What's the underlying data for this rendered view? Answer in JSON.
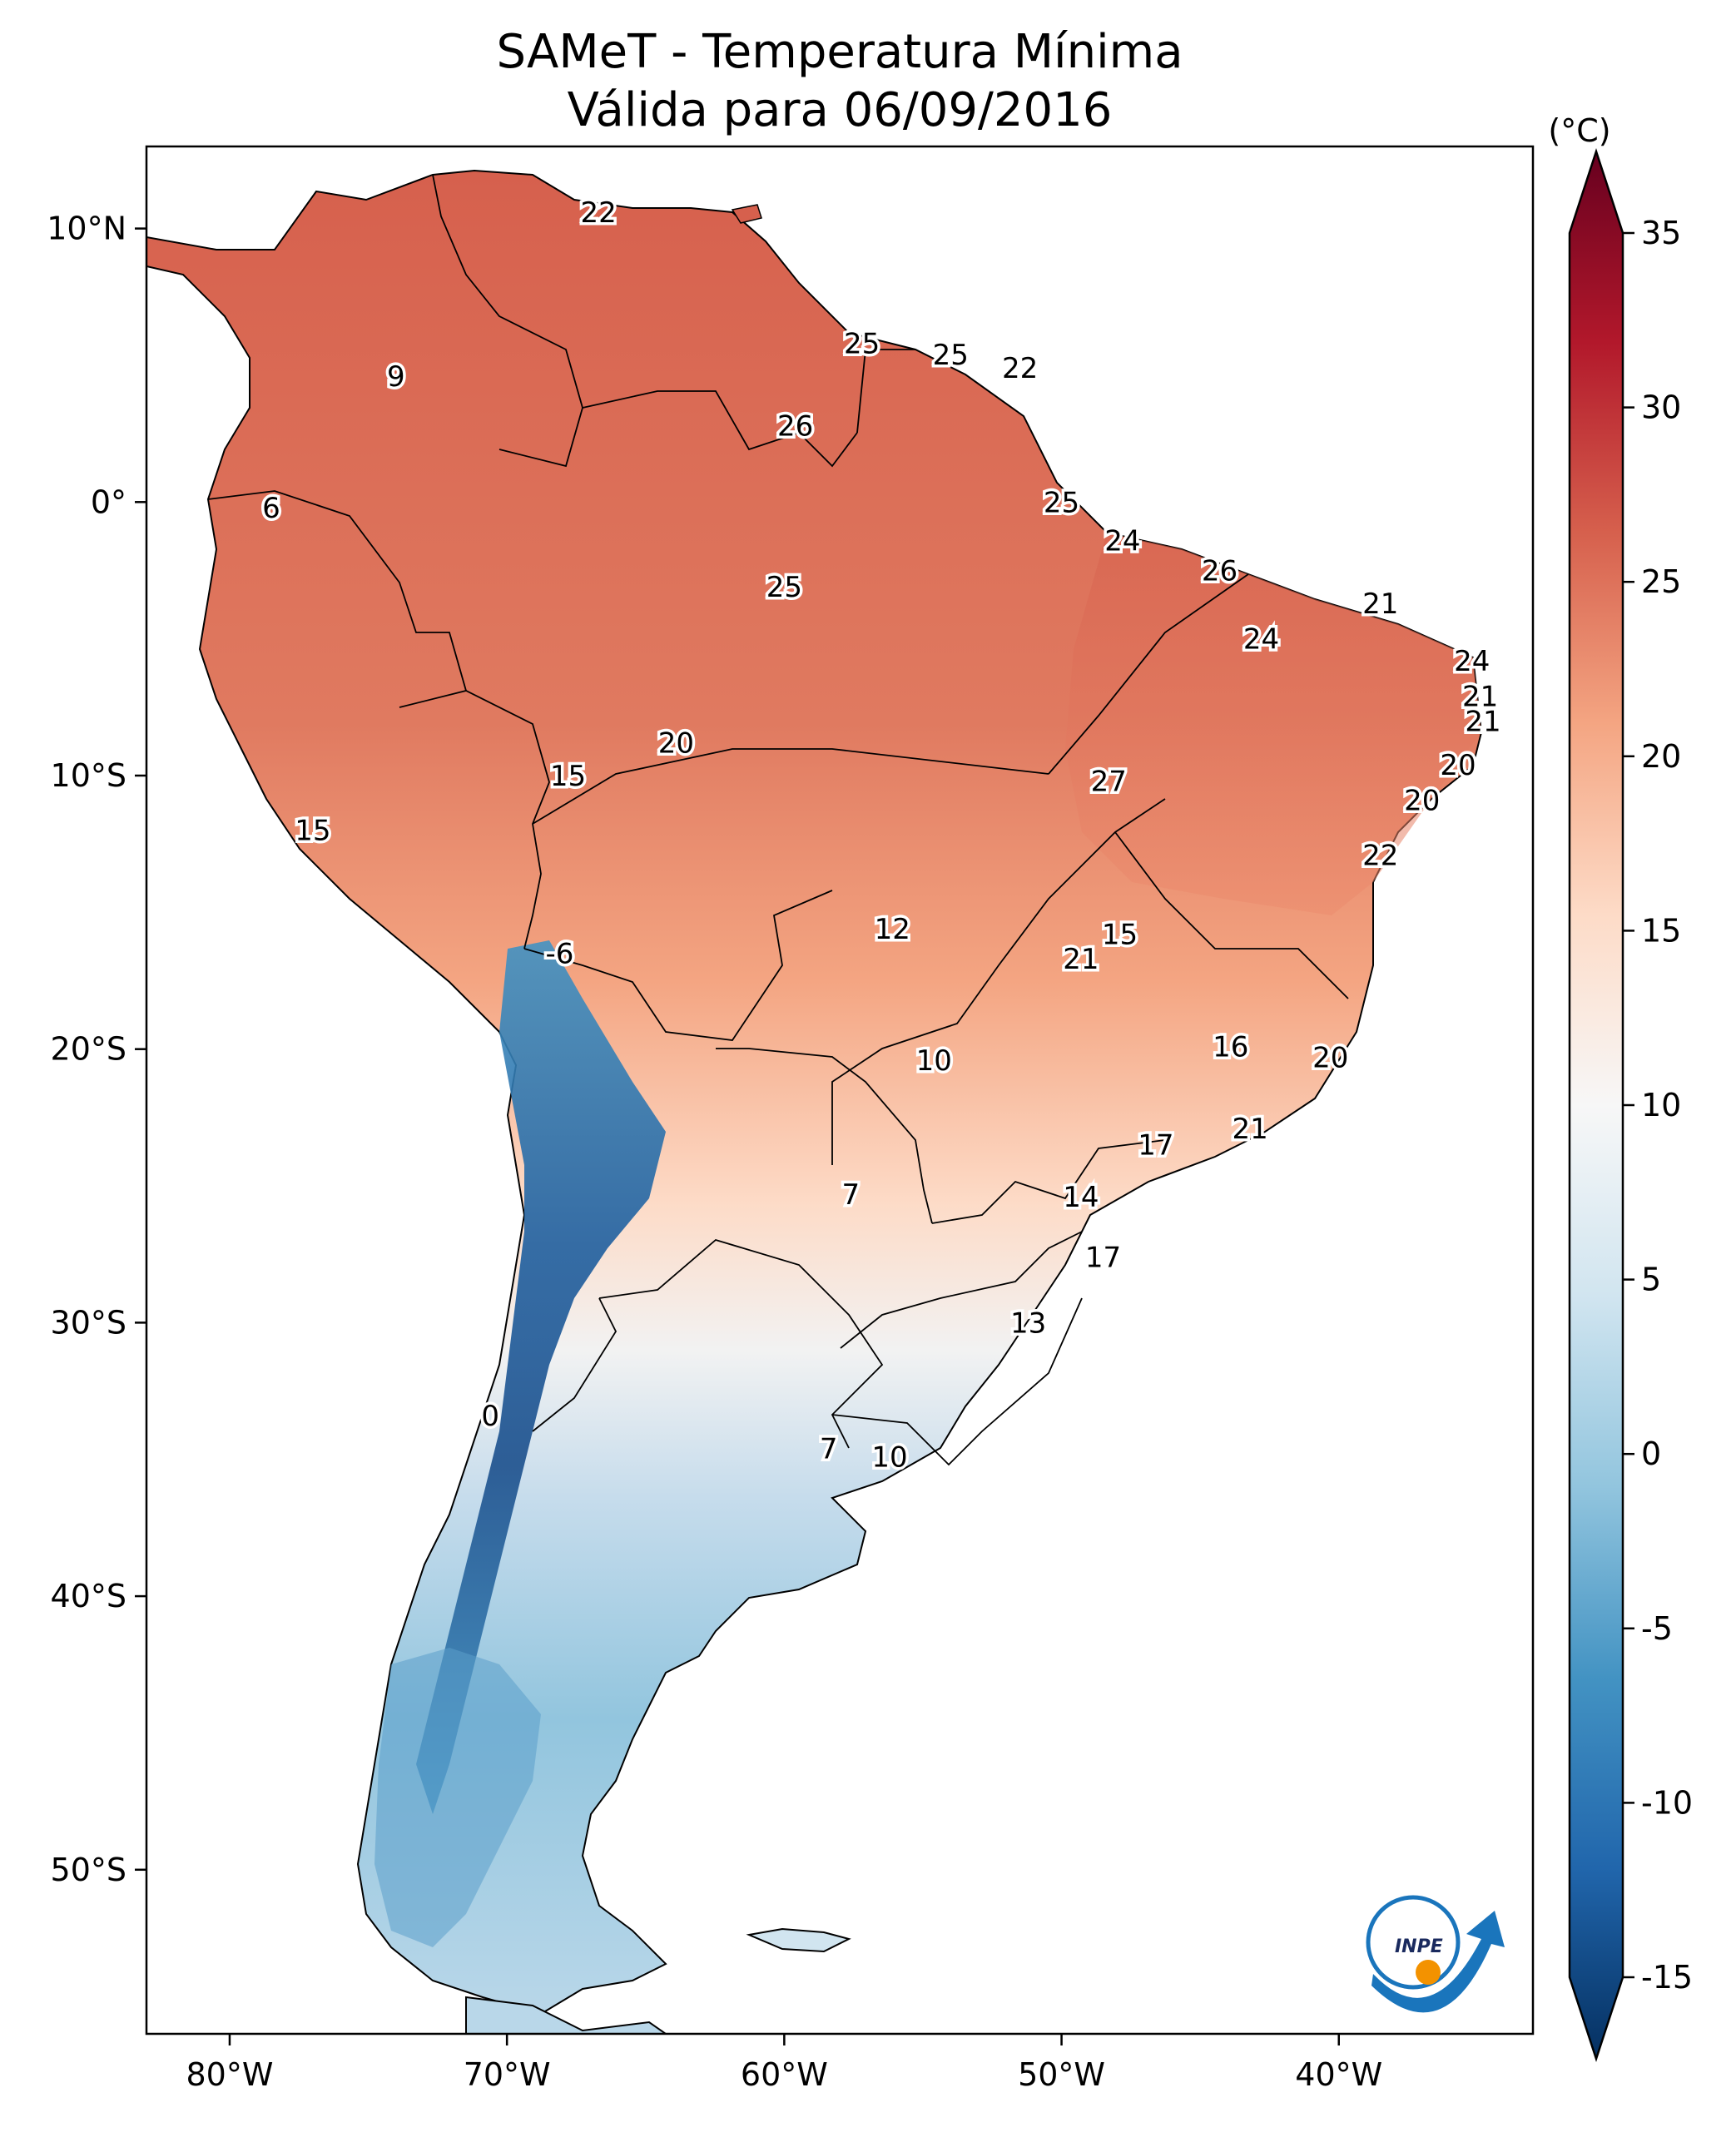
{
  "title": {
    "line1": "SAMeT - Temperatura Mínima",
    "line2": "Válida para 06/09/2016"
  },
  "map": {
    "lon_range": [
      -83,
      -33
    ],
    "lat_range": [
      -56,
      13
    ],
    "lon_ticks": [
      {
        "value": -80,
        "label": "80°W"
      },
      {
        "value": -70,
        "label": "70°W"
      },
      {
        "value": -60,
        "label": "60°W"
      },
      {
        "value": -50,
        "label": "50°W"
      },
      {
        "value": -40,
        "label": "40°W"
      }
    ],
    "lat_ticks": [
      {
        "value": 10,
        "label": "10°N"
      },
      {
        "value": 0,
        "label": "0°"
      },
      {
        "value": -10,
        "label": "10°S"
      },
      {
        "value": -20,
        "label": "20°S"
      },
      {
        "value": -30,
        "label": "30°S"
      },
      {
        "value": -40,
        "label": "40°S"
      },
      {
        "value": -50,
        "label": "50°S"
      }
    ],
    "stations": [
      {
        "label": "22",
        "lon": -66.7,
        "lat": 10.6
      },
      {
        "label": "9",
        "lon": -74.0,
        "lat": 4.6
      },
      {
        "label": "6",
        "lon": -78.5,
        "lat": -0.2
      },
      {
        "label": "25",
        "lon": -57.2,
        "lat": 5.8
      },
      {
        "label": "25",
        "lon": -54.0,
        "lat": 5.4
      },
      {
        "label": "22",
        "lon": -51.5,
        "lat": 4.9
      },
      {
        "label": "26",
        "lon": -59.6,
        "lat": 2.8
      },
      {
        "label": "25",
        "lon": -50.0,
        "lat": 0.0
      },
      {
        "label": "24",
        "lon": -47.8,
        "lat": -1.4
      },
      {
        "label": "26",
        "lon": -44.3,
        "lat": -2.5
      },
      {
        "label": "25",
        "lon": -60.0,
        "lat": -3.1
      },
      {
        "label": "21",
        "lon": -38.5,
        "lat": -3.7
      },
      {
        "label": "24",
        "lon": -42.8,
        "lat": -5.0
      },
      {
        "label": "24",
        "lon": -35.2,
        "lat": -5.8
      },
      {
        "label": "21",
        "lon": -34.9,
        "lat": -7.1
      },
      {
        "label": "21",
        "lon": -34.8,
        "lat": -8.0
      },
      {
        "label": "20",
        "lon": -63.9,
        "lat": -8.8
      },
      {
        "label": "15",
        "lon": -67.8,
        "lat": -10.0
      },
      {
        "label": "27",
        "lon": -48.3,
        "lat": -10.2
      },
      {
        "label": "20",
        "lon": -35.7,
        "lat": -9.6
      },
      {
        "label": "20",
        "lon": -37.0,
        "lat": -10.9
      },
      {
        "label": "15",
        "lon": -77.0,
        "lat": -12.0
      },
      {
        "label": "22",
        "lon": -38.5,
        "lat": -12.9
      },
      {
        "label": "12",
        "lon": -56.1,
        "lat": -15.6
      },
      {
        "label": "15",
        "lon": -47.9,
        "lat": -15.8
      },
      {
        "label": "21",
        "lon": -49.3,
        "lat": -16.7
      },
      {
        "label": "-6",
        "lon": -68.1,
        "lat": -16.5
      },
      {
        "label": "16",
        "lon": -43.9,
        "lat": -19.9
      },
      {
        "label": "10",
        "lon": -54.6,
        "lat": -20.4
      },
      {
        "label": "20",
        "lon": -40.3,
        "lat": -20.3
      },
      {
        "label": "21",
        "lon": -43.2,
        "lat": -22.9
      },
      {
        "label": "17",
        "lon": -46.6,
        "lat": -23.5
      },
      {
        "label": "7",
        "lon": -57.6,
        "lat": -25.3
      },
      {
        "label": "14",
        "lon": -49.3,
        "lat": -25.4
      },
      {
        "label": "17",
        "lon": -48.5,
        "lat": -27.6
      },
      {
        "label": "13",
        "lon": -51.2,
        "lat": -30.0
      },
      {
        "label": "0",
        "lon": -70.6,
        "lat": -33.4
      },
      {
        "label": "7",
        "lon": -58.4,
        "lat": -34.6
      },
      {
        "label": "10",
        "lon": -56.2,
        "lat": -34.9
      }
    ]
  },
  "colorbar": {
    "unit": "(°C)",
    "min": -15,
    "max": 35,
    "ticks": [
      {
        "value": 35,
        "label": "35"
      },
      {
        "value": 30,
        "label": "30"
      },
      {
        "value": 25,
        "label": "25"
      },
      {
        "value": 20,
        "label": "20"
      },
      {
        "value": 15,
        "label": "15"
      },
      {
        "value": 10,
        "label": "10"
      },
      {
        "value": 5,
        "label": "5"
      },
      {
        "value": 0,
        "label": "0"
      },
      {
        "value": -5,
        "label": "-5"
      },
      {
        "value": -10,
        "label": "-10"
      },
      {
        "value": -15,
        "label": "-15"
      }
    ],
    "colors": [
      "#053061",
      "#2166ac",
      "#4393c3",
      "#92c5de",
      "#d1e5f0",
      "#f7f7f7",
      "#fddbc7",
      "#f4a582",
      "#d6604d",
      "#b2182b",
      "#67001f"
    ]
  },
  "logo": {
    "text": "INPE",
    "blue": "#1a75bc",
    "orange": "#f39200"
  }
}
